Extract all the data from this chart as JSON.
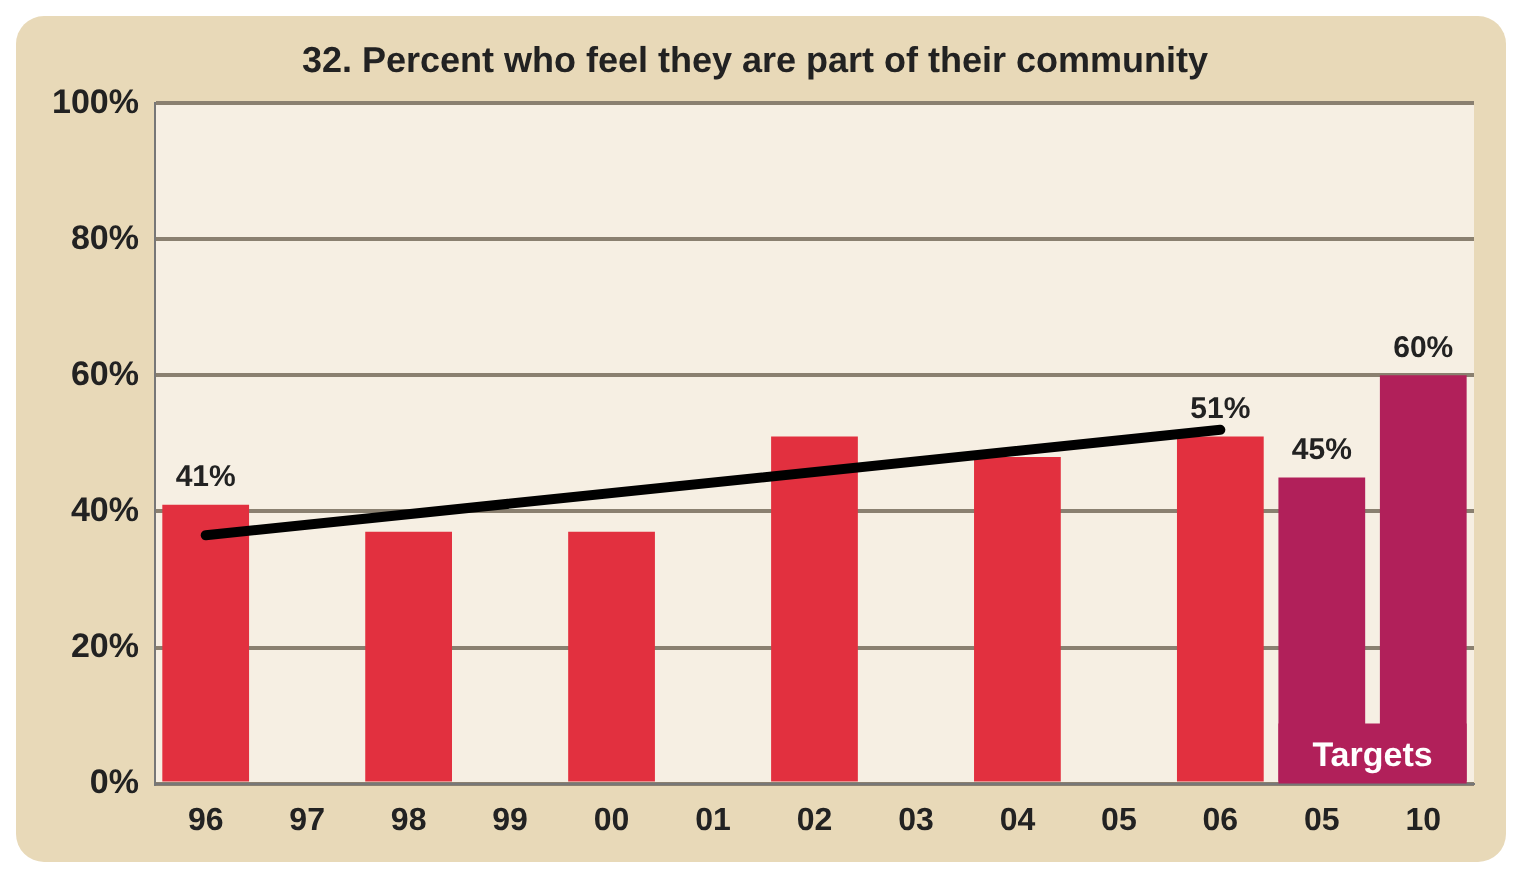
{
  "chart_data": {
    "type": "bar",
    "title": "32. Percent who feel they are part of their community",
    "categories": [
      "96",
      "97",
      "98",
      "99",
      "00",
      "01",
      "02",
      "03",
      "04",
      "05",
      "06",
      "05",
      "10"
    ],
    "series": [
      {
        "color": "#e2303f",
        "values": [
          41,
          null,
          37,
          null,
          37,
          null,
          51,
          null,
          48,
          null,
          51,
          null,
          null
        ],
        "value_labels": [
          "41%",
          null,
          null,
          null,
          null,
          null,
          null,
          null,
          null,
          null,
          "51%",
          null,
          null
        ]
      },
      {
        "name": "Targets",
        "color": "#b1205a",
        "values": [
          null,
          null,
          null,
          null,
          null,
          null,
          null,
          null,
          null,
          null,
          null,
          45,
          60
        ],
        "value_labels": [
          null,
          null,
          null,
          null,
          null,
          null,
          null,
          null,
          null,
          null,
          null,
          "45%",
          "60%"
        ]
      },
      {
        "type": "line",
        "color": "#000000",
        "x": [
          "96",
          "06"
        ],
        "values": [
          36.5,
          52
        ]
      }
    ],
    "ylim": [
      0,
      100
    ],
    "yticks": [
      {
        "value": 0,
        "label": "0%"
      },
      {
        "value": 20,
        "label": "20%"
      },
      {
        "value": 40,
        "label": "40%"
      },
      {
        "value": 60,
        "label": "60%"
      },
      {
        "value": 80,
        "label": "80%"
      },
      {
        "value": 100,
        "label": "100%"
      }
    ],
    "grid": "y",
    "legend": false
  }
}
